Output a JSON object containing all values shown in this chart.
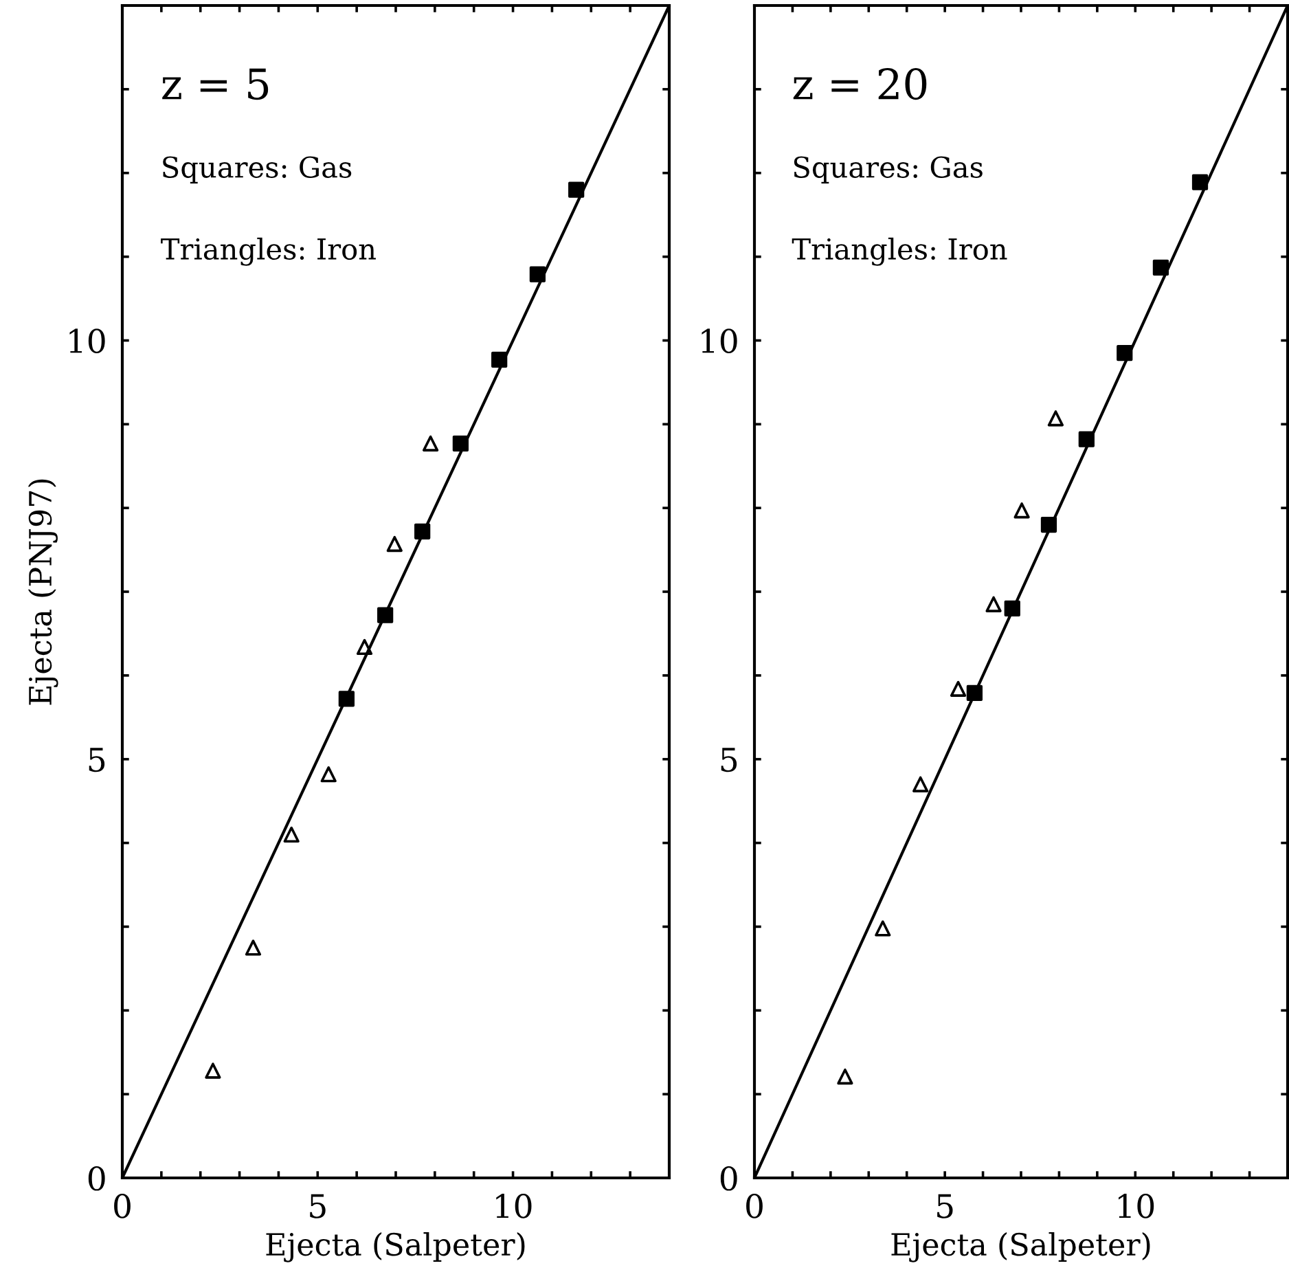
{
  "chart_data": [
    {
      "type": "scatter",
      "xlabel": "Ejecta (Salpeter)",
      "ylabel": "Ejecta (PNJ97)",
      "annotations": [
        "z = 5",
        "Squares: Gas",
        "Triangles: Iron"
      ],
      "xlim": [
        0,
        14
      ],
      "ylim": [
        0,
        14
      ],
      "xticks": [
        0,
        {
          "value": 1,
          "label": null
        },
        {
          "value": 2,
          "label": null
        },
        {
          "value": 3,
          "label": null
        },
        {
          "value": 4,
          "label": null
        },
        5,
        {
          "value": 6,
          "label": null
        },
        {
          "value": 7,
          "label": null
        },
        {
          "value": 8,
          "label": null
        },
        {
          "value": 9,
          "label": null
        },
        10,
        {
          "value": 11,
          "label": null
        },
        {
          "value": 12,
          "label": null
        },
        {
          "value": 13,
          "label": null
        }
      ],
      "yticks": [
        0,
        {
          "value": 1,
          "label": null
        },
        {
          "value": 2,
          "label": null
        },
        {
          "value": 3,
          "label": null
        },
        {
          "value": 4,
          "label": null
        },
        5,
        {
          "value": 6,
          "label": null
        },
        {
          "value": 7,
          "label": null
        },
        {
          "value": 8,
          "label": null
        },
        {
          "value": 9,
          "label": null
        },
        10,
        {
          "value": 11,
          "label": null
        },
        {
          "value": 12,
          "label": null
        },
        {
          "value": 13,
          "label": null
        }
      ],
      "series": [
        {
          "marker": "square",
          "color": "#000000",
          "x": [
            5.74,
            6.73,
            7.68,
            8.66,
            9.65,
            10.63,
            11.62
          ],
          "values": [
            5.72,
            6.72,
            7.72,
            8.77,
            9.77,
            10.79,
            11.8
          ]
        },
        {
          "marker": "triangle",
          "color": "#000000",
          "x": [
            2.32,
            3.35,
            4.33,
            5.28,
            6.2,
            6.97,
            7.89
          ],
          "values": [
            1.28,
            2.75,
            4.1,
            4.82,
            6.34,
            7.57,
            8.77
          ]
        },
        {
          "type": "line",
          "marker": "none",
          "color": "#000000",
          "x": [
            0,
            14
          ],
          "values": [
            0,
            14
          ]
        }
      ]
    },
    {
      "type": "scatter",
      "xlabel": "Ejecta (Salpeter)",
      "annotations": [
        "z = 20",
        "Squares: Gas",
        "Triangles: Iron"
      ],
      "xlim": [
        0,
        14
      ],
      "ylim": [
        0,
        14
      ],
      "xticks": [
        0,
        {
          "value": 1,
          "label": null
        },
        {
          "value": 2,
          "label": null
        },
        {
          "value": 3,
          "label": null
        },
        {
          "value": 4,
          "label": null
        },
        5,
        {
          "value": 6,
          "label": null
        },
        {
          "value": 7,
          "label": null
        },
        {
          "value": 8,
          "label": null
        },
        {
          "value": 9,
          "label": null
        },
        10,
        {
          "value": 11,
          "label": null
        },
        {
          "value": 12,
          "label": null
        },
        {
          "value": 13,
          "label": null
        }
      ],
      "yticks": [
        0,
        {
          "value": 1,
          "label": null
        },
        {
          "value": 2,
          "label": null
        },
        {
          "value": 3,
          "label": null
        },
        {
          "value": 4,
          "label": null
        },
        5,
        {
          "value": 6,
          "label": null
        },
        {
          "value": 7,
          "label": null
        },
        {
          "value": 8,
          "label": null
        },
        {
          "value": 9,
          "label": null
        },
        10,
        {
          "value": 11,
          "label": null
        },
        {
          "value": 12,
          "label": null
        },
        {
          "value": 13,
          "label": null
        }
      ],
      "series": [
        {
          "marker": "square",
          "color": "#000000",
          "x": [
            5.78,
            6.77,
            7.73,
            8.72,
            9.72,
            10.67,
            11.7
          ],
          "values": [
            5.79,
            6.8,
            7.8,
            8.82,
            9.85,
            10.87,
            11.89
          ]
        },
        {
          "marker": "triangle",
          "color": "#000000",
          "x": [
            2.38,
            3.37,
            4.36,
            5.35,
            6.28,
            7.02,
            7.91
          ],
          "values": [
            1.21,
            2.98,
            4.7,
            5.84,
            6.85,
            7.97,
            9.07
          ]
        },
        {
          "type": "line",
          "marker": "none",
          "color": "#000000",
          "x": [
            0,
            14
          ],
          "values": [
            0,
            14
          ]
        }
      ]
    }
  ]
}
